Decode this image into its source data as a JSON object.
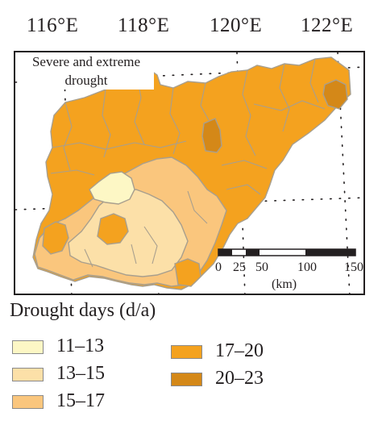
{
  "map": {
    "longitudes": [
      "116°E",
      "118°E",
      "120°E",
      "122°E"
    ],
    "title_line1": "Severe and extreme",
    "title_line2": "drought",
    "scale_bar": {
      "ticks": [
        "0",
        "25",
        "50",
        "100",
        "150"
      ],
      "unit": "(km)"
    }
  },
  "legend": {
    "title": "Drought days (d/a)",
    "items": [
      {
        "label": "11–13",
        "color": "#fdf7c5"
      },
      {
        "label": "13–15",
        "color": "#fce0a8"
      },
      {
        "label": "15–17",
        "color": "#fac67d"
      },
      {
        "label": "17–20",
        "color": "#f4a21f"
      },
      {
        "label": "20–23",
        "color": "#d48818"
      }
    ]
  },
  "colors": {
    "region_border": "#a89f8e",
    "frame": "#231f20",
    "graticule": "#231f20"
  }
}
